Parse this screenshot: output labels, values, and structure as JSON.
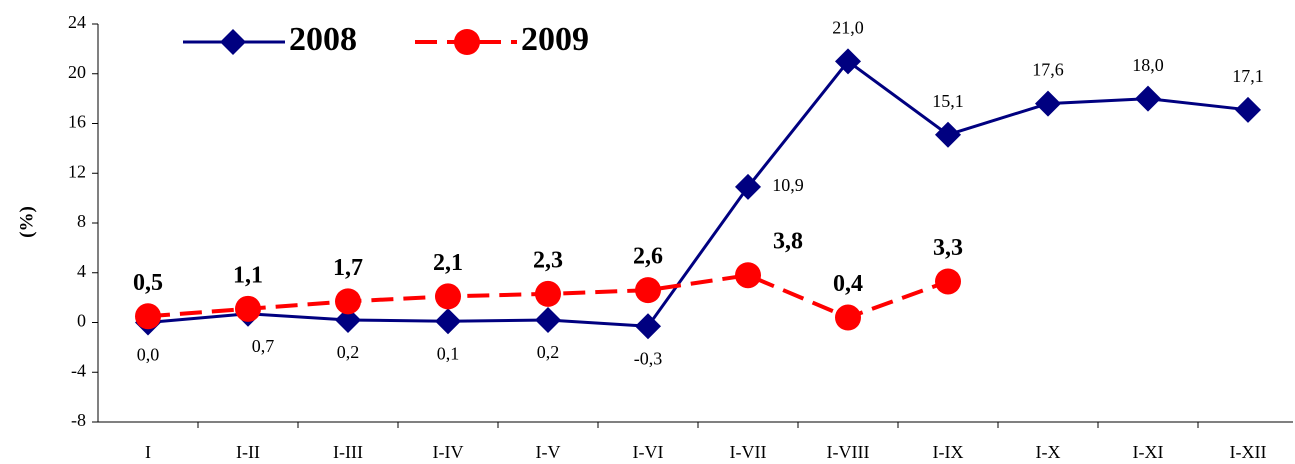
{
  "chart_data": {
    "type": "line",
    "y_label": "(%)",
    "categories": [
      "I",
      "I-II",
      "I-III",
      "I-IV",
      "I-V",
      "I-VI",
      "I-VII",
      "I-VIII",
      "I-IX",
      "I-X",
      "I-XI",
      "I-XII"
    ],
    "series": [
      {
        "name": "2008",
        "color": "#000080",
        "marker": "diamond",
        "dash": false,
        "values": [
          0.0,
          0.7,
          0.2,
          0.1,
          0.2,
          -0.3,
          10.9,
          21.0,
          15.1,
          17.6,
          18.0,
          17.1
        ],
        "value_labels": [
          "0,0",
          "0,7",
          "0,2",
          "0,1",
          "0,2",
          "-0,3",
          "10,9",
          "21,0",
          "15,1",
          "17,6",
          "18,0",
          "17,1"
        ]
      },
      {
        "name": "2009",
        "color": "#ff0000",
        "marker": "circle",
        "dash": true,
        "values": [
          0.5,
          1.1,
          1.7,
          2.1,
          2.3,
          2.6,
          3.8,
          0.4,
          3.3,
          null,
          null,
          null
        ],
        "value_labels": [
          "0,5",
          "1,1",
          "1,7",
          "2,1",
          "2,3",
          "2,6",
          "3,8",
          "0,4",
          "3,3",
          null,
          null,
          null
        ]
      }
    ],
    "ylim": [
      -8,
      24
    ],
    "yticks": [
      -8,
      -4,
      0,
      4,
      8,
      12,
      16,
      20,
      24
    ],
    "grid": false,
    "legend": "top-left"
  }
}
